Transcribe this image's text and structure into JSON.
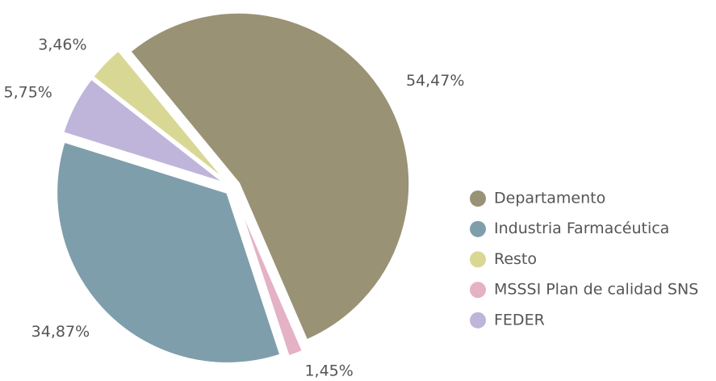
{
  "chart_data": {
    "type": "pie",
    "categories": [
      "Departamento",
      "Industria Farmacéutica",
      "Resto",
      "MSSSI Plan de calidad SNS",
      "FEDER"
    ],
    "values": [
      54.47,
      34.87,
      3.46,
      1.45,
      5.75
    ],
    "value_labels": [
      "54,47%",
      "34,87%",
      "3,46%",
      "1,45%",
      "5,75%"
    ],
    "colors": [
      "#9a9275",
      "#7f9eac",
      "#d9d794",
      "#e4b2c4",
      "#bfb5da"
    ],
    "legend": "right"
  }
}
